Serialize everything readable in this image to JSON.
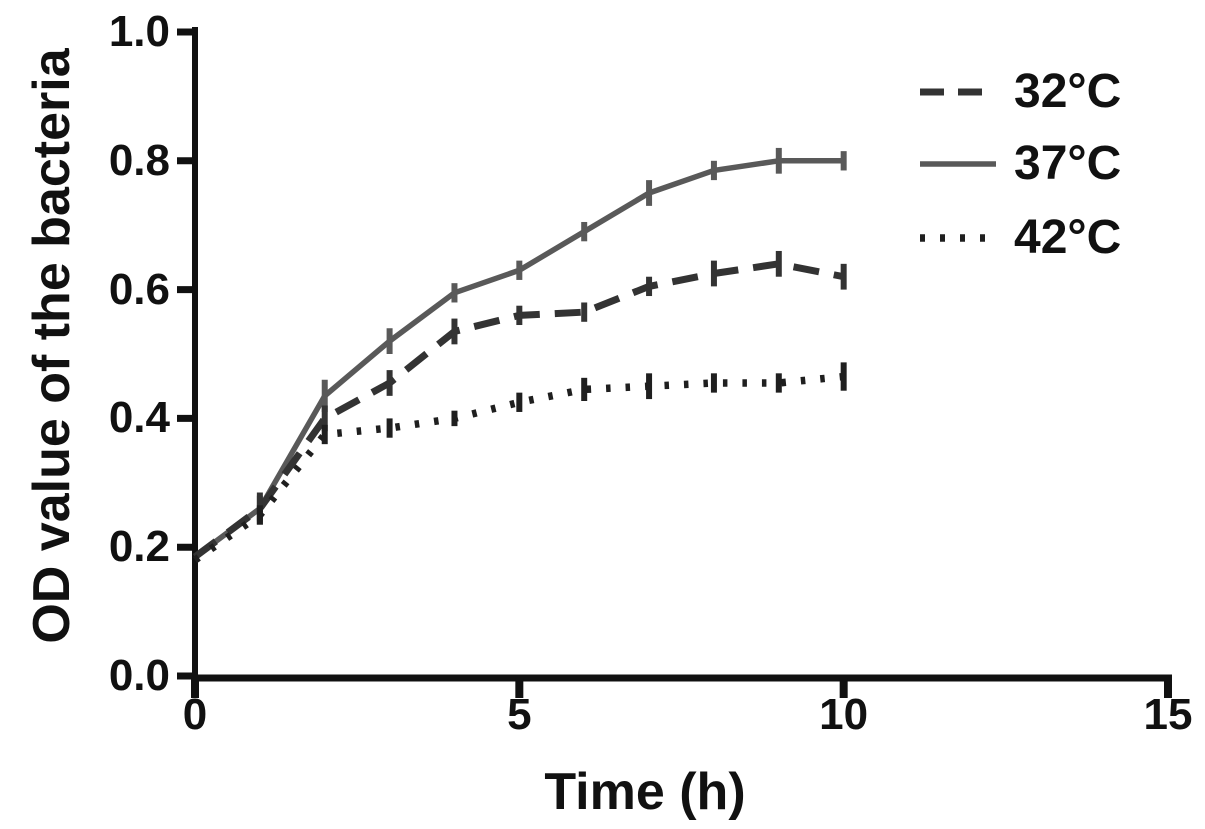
{
  "figure": {
    "background_color": "#ffffff",
    "axis_color": "#111111",
    "text_color": "#111111"
  },
  "chart_data": {
    "type": "line",
    "title": "",
    "xlabel": "Time (h)",
    "ylabel": "OD value of the bacteria",
    "xlim": [
      0,
      15
    ],
    "ylim": [
      0.0,
      1.0
    ],
    "x_ticks": [
      "0",
      "5",
      "10",
      "15"
    ],
    "x_tick_values": [
      0,
      5,
      10,
      15
    ],
    "y_ticks": [
      "0.0",
      "0.2",
      "0.4",
      "0.6",
      "0.8",
      "1.0"
    ],
    "y_tick_values": [
      0.0,
      0.2,
      0.4,
      0.6,
      0.8,
      1.0
    ],
    "grid": false,
    "legend_position": "top-right",
    "error_bars": true,
    "x": [
      0,
      1,
      2,
      3,
      4,
      5,
      6,
      7,
      8,
      9,
      10
    ],
    "series": [
      {
        "name": "32°C",
        "style": "dashed",
        "color": "#333333",
        "values": [
          0.185,
          0.26,
          0.4,
          0.455,
          0.535,
          0.56,
          0.565,
          0.605,
          0.625,
          0.64,
          0.62
        ],
        "errors": [
          0,
          0.025,
          0.02,
          0.02,
          0.02,
          0.015,
          0.015,
          0.015,
          0.02,
          0.02,
          0.02
        ]
      },
      {
        "name": "37°C",
        "style": "solid",
        "color": "#595959",
        "values": [
          0.185,
          0.26,
          0.435,
          0.52,
          0.595,
          0.63,
          0.69,
          0.75,
          0.785,
          0.8,
          0.8
        ],
        "errors": [
          0,
          0.02,
          0.025,
          0.02,
          0.015,
          0.015,
          0.015,
          0.02,
          0.015,
          0.02,
          0.015
        ]
      },
      {
        "name": "42°C",
        "style": "dotted",
        "color": "#1f1f1f",
        "values": [
          0.18,
          0.25,
          0.375,
          0.385,
          0.4,
          0.425,
          0.445,
          0.45,
          0.455,
          0.455,
          0.465
        ],
        "errors": [
          0,
          0.015,
          0.015,
          0.015,
          0.012,
          0.015,
          0.018,
          0.02,
          0.015,
          0.015,
          0.022
        ]
      }
    ]
  }
}
